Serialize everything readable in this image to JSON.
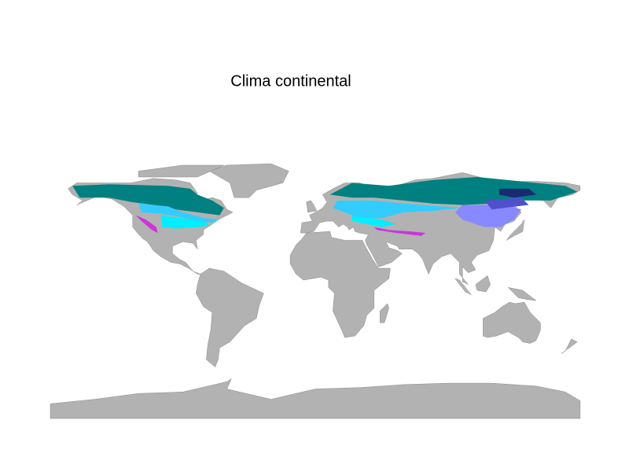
{
  "title": "Clima continental"
}
